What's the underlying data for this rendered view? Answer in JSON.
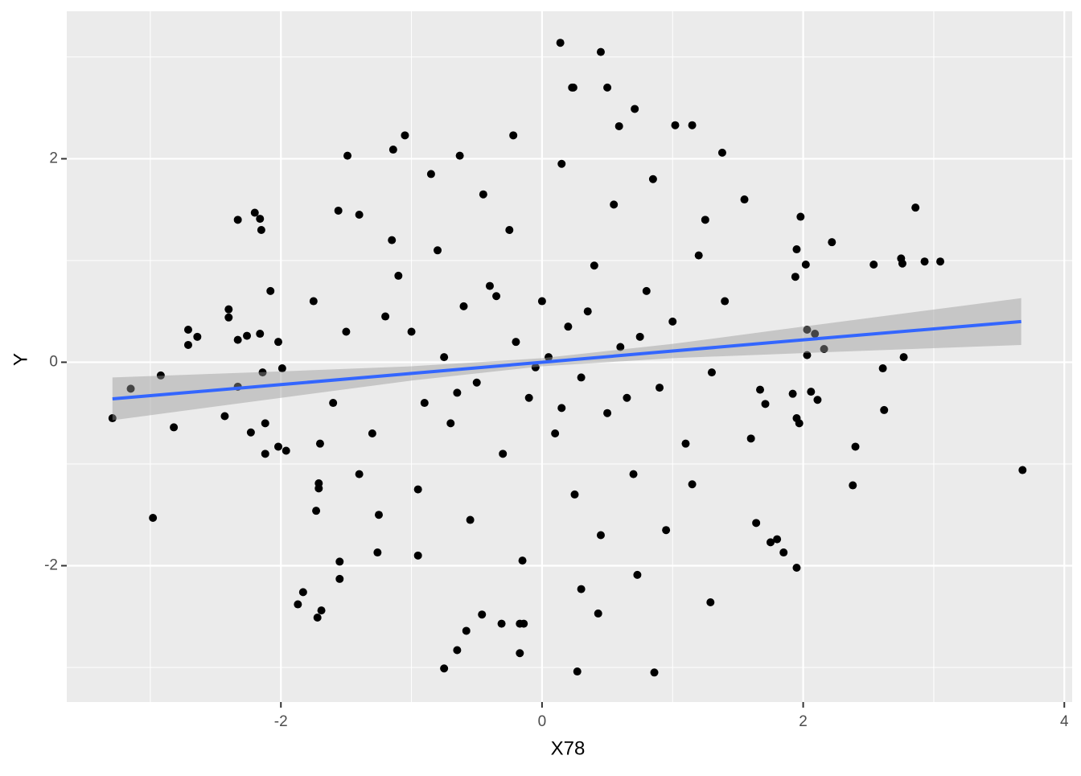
{
  "chart_data": {
    "type": "scatter",
    "xlabel": "X78",
    "ylabel": "Y",
    "xlim": [
      -3.64,
      4.06
    ],
    "ylim": [
      -3.34,
      3.45
    ],
    "xticks": [
      -2,
      0,
      2,
      4
    ],
    "yticks": [
      -2,
      0,
      2
    ],
    "xminor": [
      -3,
      -1,
      1,
      3
    ],
    "yminor": [
      -3,
      -1,
      1,
      3
    ],
    "grid": true,
    "color": "#000000",
    "x": [
      -3.29,
      -3.15,
      -2.98,
      -2.92,
      -2.82,
      -2.71,
      -2.71,
      -2.64,
      -2.43,
      -2.4,
      -2.4,
      -2.33,
      -2.33,
      -2.33,
      -2.26,
      -2.23,
      -2.2,
      -2.16,
      -2.15,
      -2.14,
      -2.16,
      -2.12,
      -2.12,
      -2.08,
      -2.02,
      -2.02,
      -1.96,
      -1.99,
      -1.87,
      -1.83,
      -1.72,
      -1.69,
      -1.71,
      -1.71,
      -1.73,
      -1.55,
      -1.55,
      -1.49,
      -1.4,
      -1.56,
      -1.26,
      -1.14,
      -1.05,
      -0.95,
      -0.75,
      -0.63,
      -0.65,
      -0.58,
      -0.46,
      -0.31,
      -0.17,
      -0.17,
      -0.14,
      -0.22,
      0.14,
      0.45,
      0.23,
      0.24,
      0.5,
      0.27,
      0.3,
      0.43,
      0.59,
      0.71,
      0.73,
      0.86,
      1.02,
      1.15,
      1.38,
      1.29,
      1.95,
      1.85,
      1.8,
      1.75,
      1.64,
      2.03,
      2.03,
      2.09,
      2.06,
      2.11,
      2.16,
      2.22,
      1.98,
      1.95,
      2.02,
      1.94,
      2.38,
      2.4,
      2.54,
      2.61,
      2.62,
      2.75,
      2.76,
      2.77,
      2.86,
      2.93,
      3.05,
      3.68,
      1.95,
      1.97,
      1.92,
      1.71,
      1.67,
      -1.2,
      -1.1,
      -1.0,
      -0.9,
      -0.8,
      -0.7,
      -0.6,
      -0.5,
      -0.4,
      -0.3,
      -0.2,
      -0.1,
      0.0,
      0.1,
      0.2,
      0.3,
      0.4,
      0.5,
      0.6,
      0.7,
      0.8,
      0.9,
      1.0,
      1.1,
      1.2,
      1.3,
      1.4,
      -1.3,
      -1.5,
      -1.6,
      -1.4,
      -0.95,
      -0.25,
      0.25,
      0.55,
      -0.55,
      0.85,
      -0.85,
      0.15,
      -0.15,
      1.55,
      1.6,
      -1.75,
      -1.7,
      0.05,
      -0.05,
      0.35,
      -0.35,
      0.65,
      -0.65,
      1.15,
      -1.15,
      0.45,
      -0.45,
      0.95,
      1.25,
      -1.25,
      0.75,
      -0.75,
      0.15
    ],
    "values": [
      -0.55,
      -0.26,
      -1.53,
      -0.13,
      -0.64,
      0.32,
      0.17,
      0.25,
      -0.53,
      0.52,
      0.44,
      -0.24,
      1.4,
      0.22,
      0.26,
      -0.69,
      1.47,
      1.41,
      1.3,
      -0.1,
      0.28,
      -0.6,
      -0.9,
      0.7,
      -0.83,
      0.2,
      -0.87,
      -0.06,
      -2.38,
      -2.26,
      -2.51,
      -2.44,
      -1.19,
      -1.24,
      -1.46,
      -1.96,
      -2.13,
      2.03,
      1.45,
      1.49,
      -1.87,
      2.09,
      2.23,
      -1.9,
      -3.01,
      2.03,
      -2.83,
      -2.64,
      -2.48,
      -2.57,
      -2.57,
      -2.86,
      -2.57,
      2.23,
      3.14,
      3.05,
      2.7,
      2.7,
      2.7,
      -3.04,
      -2.23,
      -2.47,
      2.32,
      2.49,
      -2.09,
      -3.05,
      2.33,
      2.33,
      2.06,
      -2.36,
      -2.02,
      -1.87,
      -1.74,
      -1.77,
      -1.58,
      0.07,
      0.32,
      0.28,
      -0.29,
      -0.37,
      0.13,
      1.18,
      1.43,
      1.11,
      0.96,
      0.84,
      -1.21,
      -0.83,
      0.96,
      -0.06,
      -0.47,
      1.02,
      0.97,
      0.05,
      1.52,
      0.99,
      0.99,
      -1.06,
      -0.55,
      -0.6,
      -0.31,
      -0.41,
      -0.27,
      0.45,
      0.85,
      0.3,
      -0.4,
      1.1,
      -0.6,
      0.55,
      -0.2,
      0.75,
      -0.9,
      0.2,
      -0.35,
      0.6,
      -0.7,
      0.35,
      -0.15,
      0.95,
      -0.5,
      0.15,
      -1.1,
      0.7,
      -0.25,
      0.4,
      -0.8,
      1.05,
      -0.1,
      0.6,
      -0.7,
      0.3,
      -0.4,
      -1.1,
      -1.25,
      1.3,
      -1.3,
      1.55,
      -1.55,
      1.8,
      1.85,
      1.95,
      -1.95,
      1.6,
      -0.75,
      0.6,
      -0.8,
      0.05,
      -0.05,
      0.5,
      0.65,
      -0.35,
      -0.3,
      -1.2,
      1.2,
      -1.7,
      1.65,
      -1.65,
      1.4,
      -1.5,
      0.25,
      0.05,
      -0.45
    ],
    "fit": {
      "color": "#3366FF",
      "x": [
        -3.29,
        -2,
        -1,
        0,
        1,
        2,
        3.67
      ],
      "values": [
        -0.36,
        -0.22,
        -0.11,
        0.0,
        0.11,
        0.22,
        0.4
      ],
      "lower": [
        -0.57,
        -0.35,
        -0.18,
        -0.04,
        0.04,
        0.09,
        0.17
      ],
      "upper": [
        -0.15,
        -0.09,
        -0.04,
        0.04,
        0.18,
        0.35,
        0.63
      ]
    }
  }
}
